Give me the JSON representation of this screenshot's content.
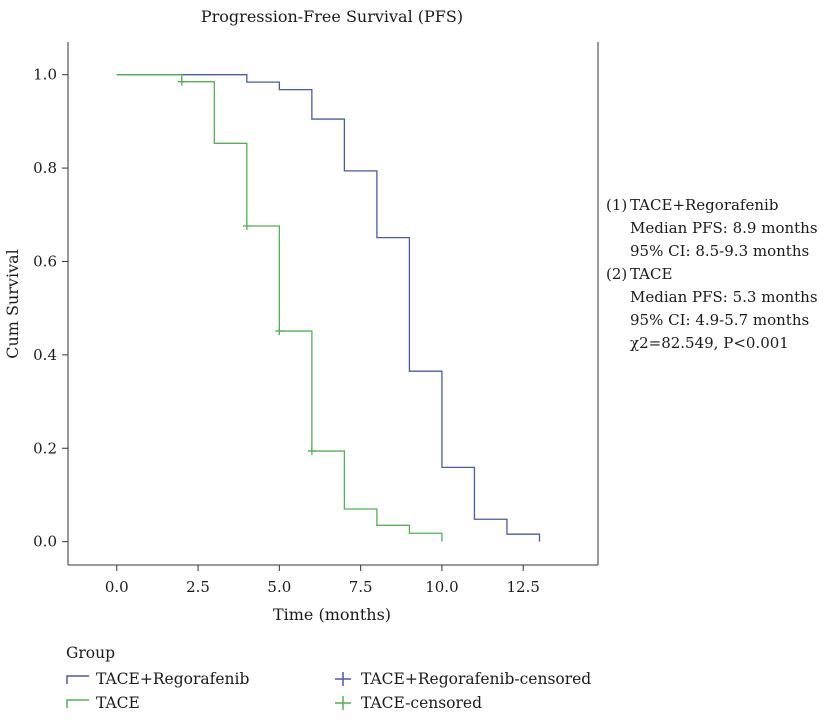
{
  "chart_data": {
    "type": "line",
    "title": "Progression-Free Survival (PFS)",
    "xlabel": "Time (months)",
    "ylabel": "Cum Survival",
    "xlim": [
      -1.5,
      14.8
    ],
    "ylim": [
      -0.05,
      1.07
    ],
    "xticks": [
      0,
      2.5,
      5,
      7.5,
      10,
      12.5
    ],
    "xtick_labels": [
      "0.0",
      "2.5",
      "5.0",
      "7.5",
      "10.0",
      "12.5"
    ],
    "yticks": [
      0,
      0.2,
      0.4,
      0.6,
      0.8,
      1.0
    ],
    "ytick_labels": [
      "0.0",
      "0.2",
      "0.4",
      "0.6",
      "0.8",
      "1.0"
    ],
    "step": "post",
    "grid": false,
    "series": [
      {
        "name": "TACE+Regorafenib",
        "color": "#4a5aa8",
        "x": [
          0,
          4,
          5,
          6,
          7,
          8,
          9,
          10,
          11,
          12,
          13
        ],
        "y": [
          1.0,
          0.984,
          0.968,
          0.905,
          0.794,
          0.651,
          0.365,
          0.159,
          0.048,
          0.016,
          0.0
        ],
        "censored": []
      },
      {
        "name": "TACE",
        "color": "#52b152",
        "x": [
          0,
          2,
          3,
          4,
          5,
          6,
          7,
          8,
          9,
          10
        ],
        "y": [
          1.0,
          0.985,
          0.853,
          0.676,
          0.451,
          0.194,
          0.07,
          0.035,
          0.018,
          0.0
        ],
        "censored": [
          [
            2,
            0.985
          ],
          [
            4,
            0.676
          ],
          [
            5,
            0.451
          ],
          [
            6,
            0.194
          ]
        ]
      }
    ],
    "annotations": {
      "group1_label": "(1)",
      "group1_name": "TACE+Regorafenib",
      "group1_median": "Median PFS: 8.9 months",
      "group1_ci": "95% CI: 8.5-9.3 months",
      "group2_label": "(2)",
      "group2_name": "TACE",
      "group2_median": "Median PFS: 5.3 months",
      "group2_ci": "95% CI: 4.9-5.7 months",
      "test": "χ2=82.549, P<0.001"
    },
    "legend": {
      "title": "Group",
      "position": "bottom-left",
      "entries": [
        {
          "label": "TACE+Regorafenib",
          "kind": "step",
          "color": "#4a5aa8"
        },
        {
          "label": "TACE+Regorafenib-censored",
          "kind": "cross",
          "color": "#4a5aa8"
        },
        {
          "label": "TACE",
          "kind": "step",
          "color": "#52b152"
        },
        {
          "label": "TACE-censored",
          "kind": "cross",
          "color": "#52b152"
        }
      ]
    }
  }
}
